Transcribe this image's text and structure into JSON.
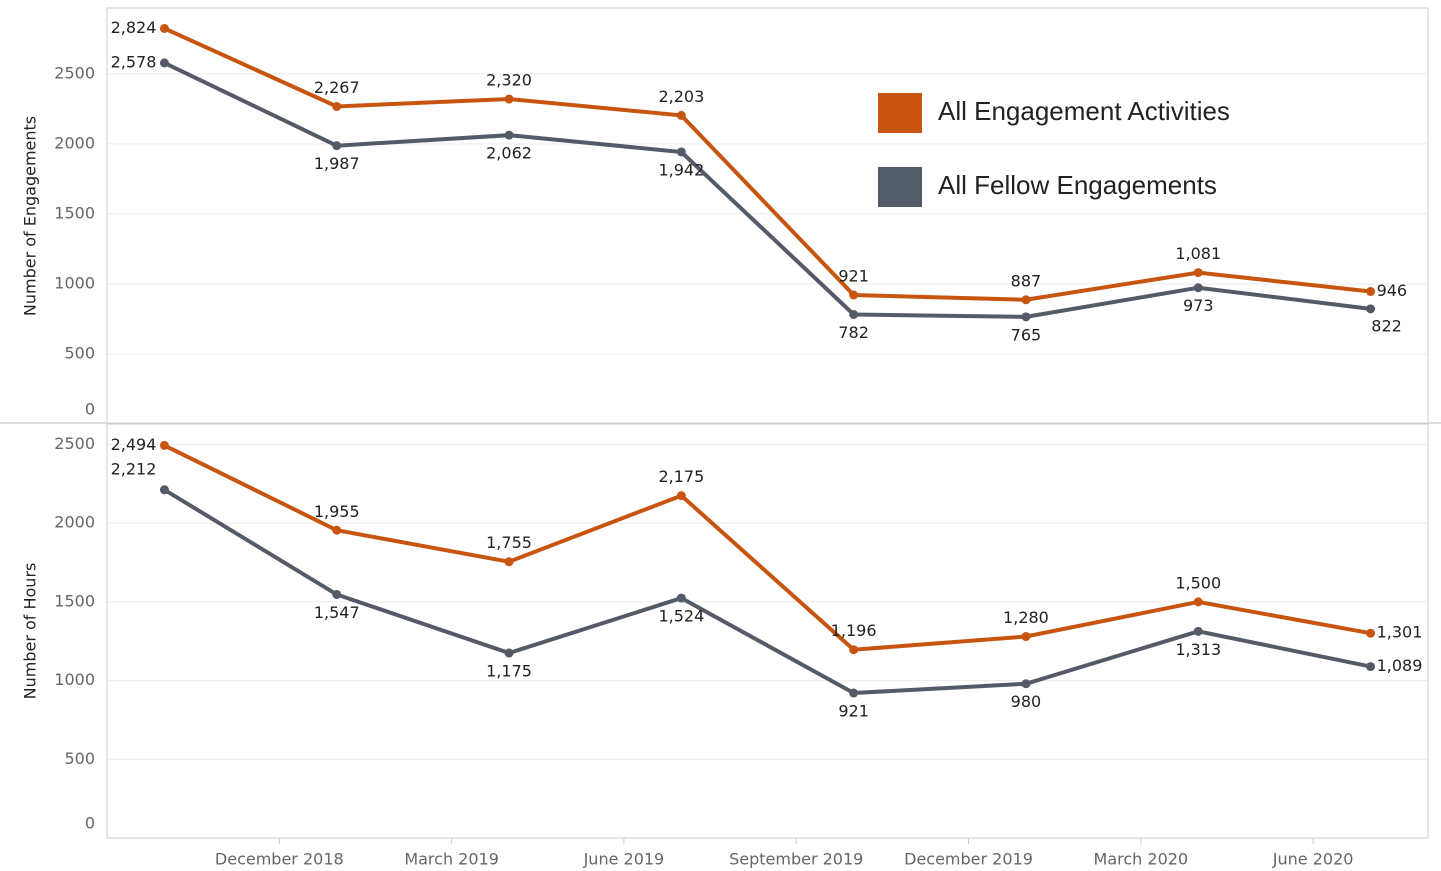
{
  "chart_data": [
    {
      "type": "line",
      "y_label": "Number of Engagements",
      "x": [
        "2018-10",
        "2019-01",
        "2019-04",
        "2019-07",
        "2019-10",
        "2020-01",
        "2020-04",
        "2020-07"
      ],
      "xlim": [
        "2018-09",
        "2020-08"
      ],
      "ylim": [
        0,
        2970
      ],
      "yticks": [
        0,
        500,
        1000,
        1500,
        2000,
        2500
      ],
      "grid": true,
      "legend": "upper right",
      "series": [
        {
          "name": "All Engagement Activities",
          "color": "#c8550f",
          "values": [
            2824,
            2267,
            2320,
            2203,
            921,
            887,
            1081,
            946
          ],
          "value_labels": [
            "2,824",
            "2,267",
            "2,320",
            "2,203",
            "921",
            "887",
            "1,081",
            "946"
          ]
        },
        {
          "name": "All Fellow Engagements",
          "color": "#545b68",
          "values": [
            2578,
            1987,
            2062,
            1942,
            782,
            765,
            973,
            822
          ],
          "value_labels": [
            "2,578",
            "1,987",
            "2,062",
            "1,942",
            "782",
            "765",
            "973",
            "822"
          ]
        }
      ]
    },
    {
      "type": "line",
      "y_label": "Number of Hours",
      "x": [
        "2018-10",
        "2019-01",
        "2019-04",
        "2019-07",
        "2019-10",
        "2020-01",
        "2020-04",
        "2020-07"
      ],
      "xlim": [
        "2018-09",
        "2020-08"
      ],
      "xticks": [
        {
          "value": "2018-12",
          "label": "December 2018"
        },
        {
          "value": "2019-03",
          "label": "March 2019"
        },
        {
          "value": "2019-06",
          "label": "June 2019"
        },
        {
          "value": "2019-09",
          "label": "September 2019"
        },
        {
          "value": "2019-12",
          "label": "December 2019"
        },
        {
          "value": "2020-03",
          "label": "March 2020"
        },
        {
          "value": "2020-06",
          "label": "June 2020"
        }
      ],
      "ylim": [
        0,
        2630
      ],
      "yticks": [
        0,
        500,
        1000,
        1500,
        2000,
        2500
      ],
      "grid": true,
      "series": [
        {
          "name": "All Engagement Activities",
          "color": "#c8550f",
          "values": [
            2494,
            1955,
            1755,
            2175,
            1196,
            1280,
            1500,
            1301
          ],
          "value_labels": [
            "2,494",
            "1,955",
            "1,755",
            "2,175",
            "1,196",
            "1,280",
            "1,500",
            "1,301"
          ]
        },
        {
          "name": "All Fellow Engagements",
          "color": "#545b68",
          "values": [
            2212,
            1547,
            1175,
            1524,
            921,
            980,
            1313,
            1089
          ],
          "value_labels": [
            "2,212",
            "1,547",
            "1,175",
            "1,524",
            "921",
            "980",
            "1,313",
            "1,089"
          ]
        }
      ]
    }
  ]
}
